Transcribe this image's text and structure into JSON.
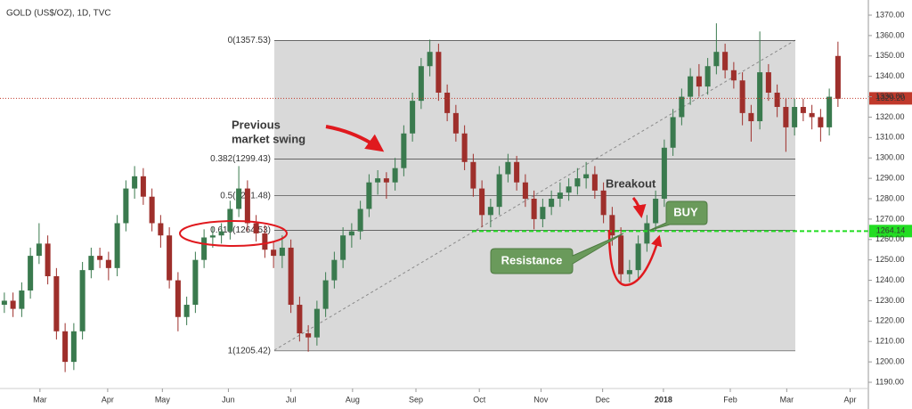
{
  "chart_data": {
    "type": "candlestick",
    "title": "GOLD (US$/OZ), 1D, TVC",
    "up_color": "#3a7a4e",
    "down_color": "#9e2f2b",
    "open": [
      1228,
      1230,
      1226,
      1235,
      1252,
      1258,
      1242,
      1215,
      1200,
      1215,
      1245,
      1252,
      1250,
      1246,
      1268,
      1285,
      1291,
      1281,
      1268,
      1262,
      1240,
      1222,
      1228,
      1250,
      1261,
      1262,
      1264,
      1275,
      1285,
      1268,
      1263,
      1255,
      1252,
      1256,
      1228,
      1214,
      1212,
      1226,
      1240,
      1250,
      1262,
      1264,
      1275,
      1288,
      1290,
      1288,
      1295,
      1312,
      1328,
      1345,
      1352,
      1332,
      1322,
      1312,
      1298,
      1285,
      1272,
      1276,
      1292,
      1298,
      1288,
      1280,
      1270,
      1276,
      1280,
      1283,
      1286,
      1290,
      1292,
      1284,
      1272,
      1262,
      1243,
      1245,
      1258,
      1268,
      1280,
      1305,
      1320,
      1330,
      1340,
      1335,
      1345,
      1352,
      1343,
      1338,
      1322,
      1318,
      1342,
      1332,
      1325,
      1315,
      1325,
      1322,
      1320,
      1315,
      1350
    ],
    "high": [
      1234,
      1234,
      1239,
      1256,
      1268,
      1262,
      1246,
      1219,
      1219,
      1249,
      1256,
      1256,
      1254,
      1272,
      1289,
      1296,
      1295,
      1285,
      1272,
      1266,
      1244,
      1232,
      1254,
      1265,
      1266,
      1268,
      1279,
      1296,
      1289,
      1272,
      1267,
      1259,
      1262,
      1260,
      1232,
      1218,
      1230,
      1244,
      1254,
      1266,
      1268,
      1279,
      1292,
      1294,
      1293,
      1300,
      1316,
      1332,
      1349,
      1358,
      1356,
      1336,
      1326,
      1316,
      1302,
      1289,
      1280,
      1296,
      1302,
      1301,
      1292,
      1284,
      1280,
      1284,
      1288,
      1290,
      1295,
      1298,
      1296,
      1288,
      1276,
      1266,
      1250,
      1262,
      1272,
      1284,
      1309,
      1324,
      1334,
      1344,
      1346,
      1349,
      1366,
      1356,
      1347,
      1342,
      1326,
      1362,
      1346,
      1336,
      1329,
      1329,
      1329,
      1326,
      1324,
      1334,
      1357
    ],
    "low": [
      1224,
      1222,
      1222,
      1231,
      1248,
      1238,
      1211,
      1195,
      1196,
      1211,
      1241,
      1246,
      1240,
      1242,
      1264,
      1280,
      1277,
      1264,
      1256,
      1236,
      1215,
      1218,
      1224,
      1246,
      1256,
      1258,
      1260,
      1271,
      1264,
      1259,
      1251,
      1246,
      1246,
      1224,
      1210,
      1205,
      1208,
      1222,
      1236,
      1246,
      1256,
      1260,
      1271,
      1282,
      1280,
      1284,
      1291,
      1308,
      1324,
      1340,
      1328,
      1318,
      1308,
      1294,
      1281,
      1266,
      1266,
      1272,
      1288,
      1284,
      1276,
      1265,
      1266,
      1272,
      1276,
      1279,
      1282,
      1285,
      1280,
      1268,
      1257,
      1238,
      1239,
      1241,
      1254,
      1264,
      1276,
      1301,
      1316,
      1326,
      1330,
      1331,
      1341,
      1339,
      1334,
      1316,
      1308,
      1314,
      1328,
      1320,
      1303,
      1311,
      1318,
      1314,
      1308,
      1311,
      1325
    ],
    "close": [
      1230,
      1226,
      1235,
      1252,
      1258,
      1242,
      1215,
      1200,
      1215,
      1245,
      1252,
      1250,
      1246,
      1268,
      1285,
      1291,
      1281,
      1268,
      1262,
      1240,
      1222,
      1228,
      1250,
      1261,
      1262,
      1264,
      1275,
      1285,
      1268,
      1263,
      1255,
      1252,
      1256,
      1228,
      1214,
      1212,
      1226,
      1240,
      1250,
      1262,
      1264,
      1275,
      1288,
      1290,
      1288,
      1295,
      1312,
      1328,
      1345,
      1352,
      1332,
      1322,
      1312,
      1298,
      1285,
      1272,
      1276,
      1292,
      1298,
      1288,
      1280,
      1270,
      1276,
      1280,
      1283,
      1286,
      1290,
      1292,
      1284,
      1272,
      1262,
      1243,
      1245,
      1258,
      1268,
      1280,
      1305,
      1320,
      1330,
      1340,
      1335,
      1345,
      1352,
      1343,
      1338,
      1322,
      1318,
      1342,
      1332,
      1325,
      1315,
      1325,
      1322,
      1320,
      1315,
      1330,
      1329
    ],
    "xlim": [
      -0.5,
      99.5
    ],
    "xticks": [
      {
        "value": 4.1,
        "label": "Mar"
      },
      {
        "value": 11.9,
        "label": "Apr"
      },
      {
        "value": 18.2,
        "label": "May"
      },
      {
        "value": 25.8,
        "label": "Jun"
      },
      {
        "value": 33.0,
        "label": "Jul"
      },
      {
        "value": 40.1,
        "label": "Aug"
      },
      {
        "value": 47.4,
        "label": "Sep"
      },
      {
        "value": 54.7,
        "label": "Oct"
      },
      {
        "value": 61.8,
        "label": "Nov"
      },
      {
        "value": 68.9,
        "label": "Dec"
      },
      {
        "value": 75.9,
        "label": "2018"
      },
      {
        "value": 83.6,
        "label": "Feb"
      },
      {
        "value": 90.1,
        "label": "Mar"
      },
      {
        "value": 97.4,
        "label": "Apr"
      }
    ],
    "ylim": [
      1186.95,
      1377.43
    ],
    "yticks": [
      {
        "value": 1190,
        "label": "1190.00"
      },
      {
        "value": 1200,
        "label": "1200.00"
      },
      {
        "value": 1210,
        "label": "1210.00"
      },
      {
        "value": 1220,
        "label": "1220.00"
      },
      {
        "value": 1230,
        "label": "1230.00"
      },
      {
        "value": 1240,
        "label": "1240.00"
      },
      {
        "value": 1250,
        "label": "1250.00"
      },
      {
        "value": 1260,
        "label": "1260.00"
      },
      {
        "value": 1270,
        "label": "1270.00"
      },
      {
        "value": 1280,
        "label": "1280.00"
      },
      {
        "value": 1290,
        "label": "1290.00"
      },
      {
        "value": 1300,
        "label": "1300.00"
      },
      {
        "value": 1310,
        "label": "1310.00"
      },
      {
        "value": 1320,
        "label": "1320.00"
      },
      {
        "value": 1330,
        "label": "1330.00"
      },
      {
        "value": 1340,
        "label": "1340.00"
      },
      {
        "value": 1350,
        "label": "1350.00"
      },
      {
        "value": 1360,
        "label": "1360.00"
      },
      {
        "value": 1370,
        "label": "1370.00"
      }
    ],
    "fib_levels": [
      {
        "value": 1357.53,
        "label": "0(1357.53)"
      },
      {
        "value": 1299.43,
        "label": "0.382(1299.43)"
      },
      {
        "value": 1281.48,
        "label": "0.5(1281.48)"
      },
      {
        "value": 1264.53,
        "label": "0.618(1264.53)"
      },
      {
        "value": 1205.42,
        "label": "1(1205.42)"
      }
    ],
    "price_lines": [
      {
        "value": 1329.2,
        "label": "1329.20",
        "color": "#c0392b",
        "style": "dotted"
      },
      {
        "value": 1264.14,
        "label": "1264.14",
        "color": "#22dd22",
        "style": "dashed"
      }
    ],
    "annotations": [
      "Previous",
      "market swing",
      "Breakout",
      "BUY",
      "Resistance"
    ]
  }
}
